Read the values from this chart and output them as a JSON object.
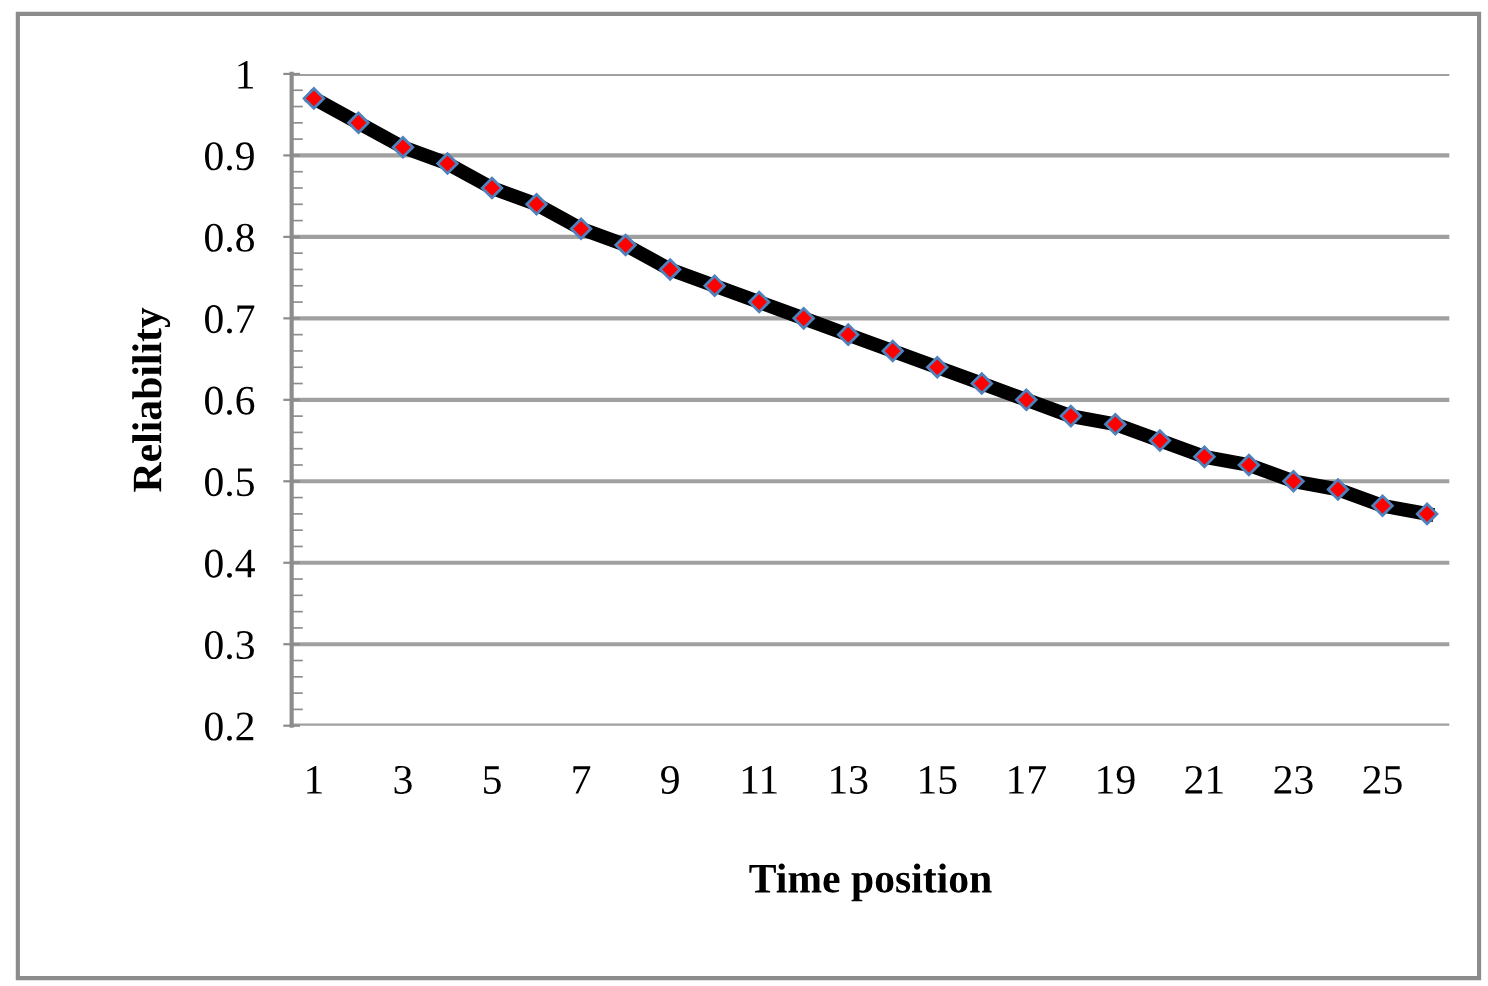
{
  "chart_data": {
    "type": "line",
    "xlabel": "Time position",
    "ylabel": "Reliability",
    "categories": [
      "1",
      null,
      "3",
      null,
      "5",
      null,
      "7",
      null,
      "9",
      null,
      "11",
      null,
      "13",
      null,
      "15",
      null,
      "17",
      null,
      "19",
      null,
      "21",
      null,
      "23",
      null,
      "25",
      null
    ],
    "series": [
      {
        "color": "#000000",
        "values": [
          0.97,
          0.94,
          0.91,
          0.89,
          0.86,
          0.84,
          0.81,
          0.79,
          0.76,
          0.74,
          0.72,
          0.7,
          0.68,
          0.66,
          0.64,
          0.62,
          0.6,
          0.58,
          0.57,
          0.55,
          0.53,
          0.52,
          0.5,
          0.49,
          0.47,
          0.46
        ]
      }
    ],
    "ylim": [
      0.2,
      1
    ],
    "yticks": [
      {
        "value": 0.2,
        "label": "0.2"
      },
      {
        "value": 0.3,
        "label": "0.3"
      },
      {
        "value": 0.4,
        "label": "0.4"
      },
      {
        "value": 0.5,
        "label": "0.5"
      },
      {
        "value": 0.6,
        "label": "0.6"
      },
      {
        "value": 0.7,
        "label": "0.7"
      },
      {
        "value": 0.8,
        "label": "0.8"
      },
      {
        "value": 0.9,
        "label": "0.9"
      },
      1
    ],
    "grid": "y",
    "marker": "diamond",
    "line_style": "solid"
  }
}
